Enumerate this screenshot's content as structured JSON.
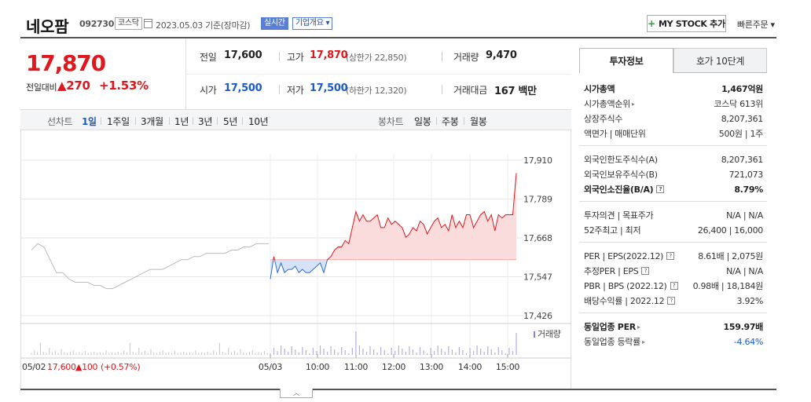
{
  "header": {
    "stock_name": "네오팜",
    "stock_code": "092730",
    "market": "코스닥",
    "date_text": "2023.05.03  기준(장마감)",
    "live_label": "실시간",
    "company_label": "기업개요 ▾",
    "mystock_label": "MY STOCK 추가",
    "quick_order_label": "빠른주문 ▾"
  },
  "price": {
    "current": "17,870",
    "prev_label": "전일대비",
    "change_amount": "▲270",
    "change_percent": "+1.53%"
  },
  "stats": {
    "prev_close_label": "전일",
    "prev_close": "17,600",
    "high_label": "고가",
    "high": "17,870",
    "upper_limit": "(상한가 22,850)",
    "volume_label": "거래량",
    "volume": "9,470",
    "open_label": "시가",
    "open": "17,500",
    "low_label": "저가",
    "low": "17,500",
    "lower_limit": "(하한가 12,320)",
    "trade_value_label": "거래대금",
    "trade_value": "167 백만"
  },
  "toolbar": {
    "line_chart_label": "선차트",
    "periods": [
      "1일",
      "1주일",
      "3개월",
      "1년",
      "3년",
      "5년",
      "10년"
    ],
    "selected_period": "1일",
    "candle_label": "봉차트",
    "candles": [
      "일봉",
      "주봉",
      "월봉"
    ]
  },
  "chart_data": {
    "type": "line",
    "y_ticks": [
      "17,910",
      "17,789",
      "17,668",
      "17,547",
      "17,426"
    ],
    "ylim": [
      17426,
      17910
    ],
    "base_price": 17600,
    "x_ticks": [
      "05/03",
      "10:00",
      "11:00",
      "12:00",
      "13:00",
      "14:00",
      "15:00"
    ],
    "prev_day_label": "05/02",
    "prev_day_close": "17,600",
    "prev_day_change": "▲100",
    "prev_day_change_pct": "(+0.57%)",
    "volume_label": "거래량",
    "series": [
      {
        "prev_day": [
          17630,
          17650,
          17640,
          17600,
          17560,
          17560,
          17540,
          17530,
          17530,
          17530,
          17520,
          17520,
          17510,
          17510,
          17520,
          17530,
          17540,
          17550,
          17560,
          17570,
          17570,
          17570,
          17580,
          17590,
          17600,
          17600,
          17610,
          17610,
          17620,
          17620,
          17620,
          17620,
          17630,
          17630,
          17640,
          17640,
          17650,
          17650,
          17650
        ],
        "today": [
          17540,
          17610,
          17560,
          17590,
          17560,
          17570,
          17570,
          17580,
          17560,
          17570,
          17560,
          17560,
          17570,
          17580,
          17590,
          17560,
          17600,
          17610,
          17630,
          17640,
          17640,
          17660,
          17650,
          17700,
          17750,
          17720,
          17740,
          17720,
          17720,
          17730,
          17740,
          17700,
          17700,
          17730,
          17710,
          17720,
          17710,
          17700,
          17670,
          17680,
          17700,
          17690,
          17720,
          17710,
          17680,
          17700,
          17720,
          17730,
          17700,
          17710,
          17690,
          17740,
          17700,
          17720,
          17700,
          17740,
          17740,
          17700,
          17720,
          17740,
          17750,
          17720,
          17740,
          17690,
          17740,
          17730,
          17740,
          17740,
          17740,
          17870
        ]
      }
    ]
  },
  "invest_info": {
    "tab_info": "투자정보",
    "tab_hoga": "호가 10단계",
    "market_cap_label": "시가총액",
    "market_cap": "1,467억원",
    "cap_rank_label": "시가총액순위",
    "cap_rank": "코스닥 613위",
    "shares_label": "상장주식수",
    "shares": "8,207,361",
    "par_label": "액면가 | 매매단위",
    "par": "500원 | 1주",
    "foreign_limit_label": "외국인한도주식수(A)",
    "foreign_limit": "8,207,361",
    "foreign_hold_label": "외국인보유주식수(B)",
    "foreign_hold": "721,073",
    "foreign_ratio_label": "외국인소진율(B/A)",
    "foreign_ratio": "8.79%",
    "opinion_label": "투자의견 | 목표주가",
    "opinion": "N/A | N/A",
    "week52_label": "52주최고 | 최저",
    "week52": "26,400 | 16,000",
    "per_label": "PER | EPS(2022.12)",
    "per": "8.61배 | 2,075원",
    "est_per_label": "추정PER | EPS",
    "est_per": "N/A | N/A",
    "pbr_label": "PBR | BPS (2022.12)",
    "pbr": "0.98배 | 18,184원",
    "div_label": "배당수익률 | 2022.12",
    "div": "3.92%",
    "ind_per_label": "동일업종 PER",
    "ind_per": "159.97배",
    "ind_rate_label": "동일업종 등락률",
    "ind_rate": "-4.64%"
  }
}
